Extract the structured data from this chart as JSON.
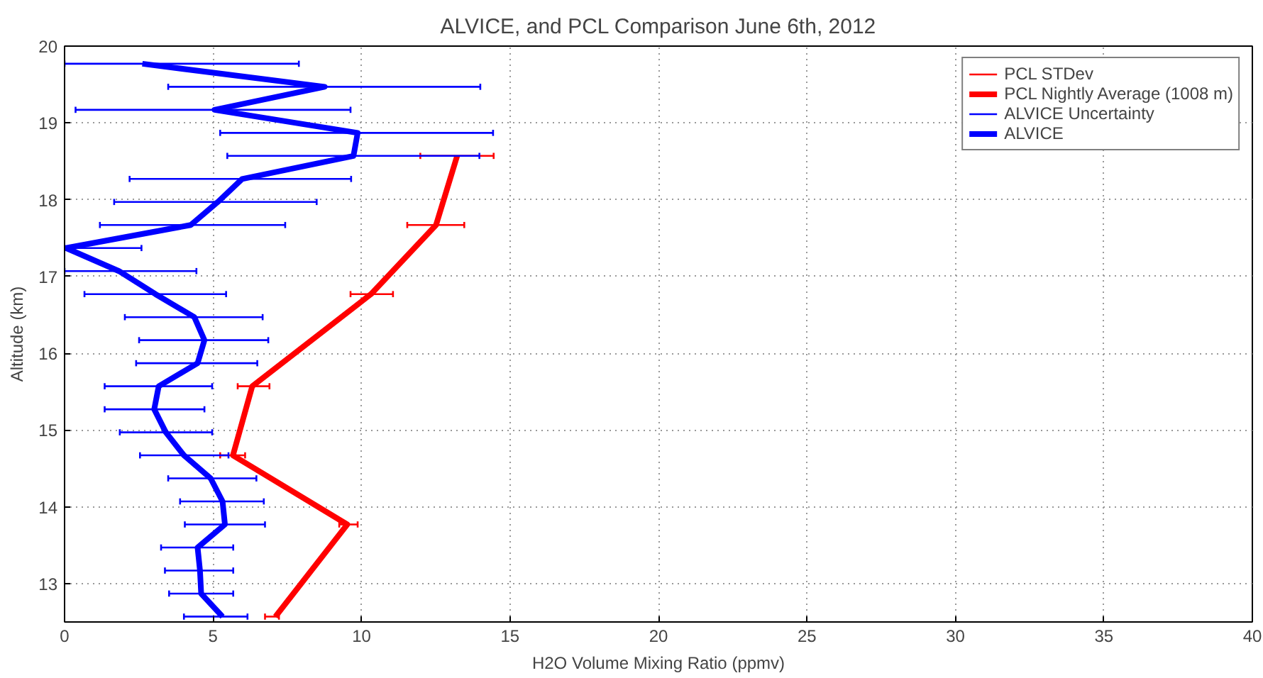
{
  "chart_data": {
    "type": "line",
    "title": "ALVICE, and PCL Comparison June 6th, 2012",
    "xlabel": "H2O Volume Mixing Ratio (ppmv)",
    "ylabel": "Altitude (km)",
    "xlim": [
      0,
      40
    ],
    "xticks": [
      0,
      5,
      10,
      15,
      20,
      25,
      30,
      35,
      40
    ],
    "ylim": [
      12.5,
      20
    ],
    "yticks": [
      13,
      14,
      15,
      16,
      17,
      18,
      19,
      20
    ],
    "grid": true,
    "legend": "top right",
    "line_style": "solid",
    "marker": "none",
    "series": [
      {
        "name": "PCL STDev",
        "color": "#ff0000"
      },
      {
        "name": "PCL Nightly Average (1008 m)",
        "color": "#ff0000",
        "x": [
          13.22,
          12.51,
          10.32,
          6.32,
          5.67,
          9.52,
          7.1
        ],
        "values": [
          18.57,
          17.67,
          16.77,
          15.57,
          14.67,
          13.77,
          12.57
        ],
        "xerrors": [
          [
            11.98,
            14.45
          ],
          [
            11.54,
            13.46
          ],
          [
            9.63,
            11.06
          ],
          [
            5.83,
            6.9
          ],
          [
            5.24,
            6.08
          ],
          [
            9.25,
            9.87
          ],
          [
            6.75,
            7.22
          ]
        ]
      },
      {
        "name": "ALVICE Uncertainty",
        "color": "#0000ff"
      },
      {
        "name": "ALVICE",
        "color": "#0000ff",
        "x": [
          2.62,
          8.76,
          5.05,
          9.87,
          9.73,
          5.98,
          5.16,
          4.25,
          0.05,
          1.83,
          3.06,
          4.37,
          4.71,
          4.48,
          3.17,
          3.02,
          3.41,
          4.02,
          4.92,
          5.32,
          5.4,
          4.48,
          4.56,
          4.6,
          5.32
        ],
        "values": [
          19.77,
          19.47,
          19.17,
          18.87,
          18.57,
          18.27,
          17.97,
          17.67,
          17.37,
          17.07,
          16.77,
          16.47,
          16.17,
          15.87,
          15.57,
          15.27,
          14.97,
          14.67,
          14.37,
          14.07,
          13.77,
          13.47,
          13.17,
          12.87,
          12.57
        ],
        "xerrors": [
          [
            0,
            7.89
          ],
          [
            3.49,
            14.0
          ],
          [
            0.37,
            9.63
          ],
          [
            5.24,
            14.43
          ],
          [
            5.48,
            13.97
          ],
          [
            2.19,
            9.65
          ],
          [
            1.67,
            8.49
          ],
          [
            1.19,
            7.43
          ],
          [
            0,
            2.59
          ],
          [
            0,
            4.44
          ],
          [
            0.67,
            5.44
          ],
          [
            2.03,
            6.67
          ],
          [
            2.51,
            6.86
          ],
          [
            2.41,
            6.49
          ],
          [
            1.35,
            4.97
          ],
          [
            1.35,
            4.71
          ],
          [
            1.86,
            4.97
          ],
          [
            2.54,
            5.52
          ],
          [
            3.49,
            6.46
          ],
          [
            3.89,
            6.71
          ],
          [
            4.05,
            6.75
          ],
          [
            3.25,
            5.68
          ],
          [
            3.38,
            5.68
          ],
          [
            3.52,
            5.68
          ],
          [
            4.02,
            6.16
          ]
        ]
      }
    ]
  }
}
